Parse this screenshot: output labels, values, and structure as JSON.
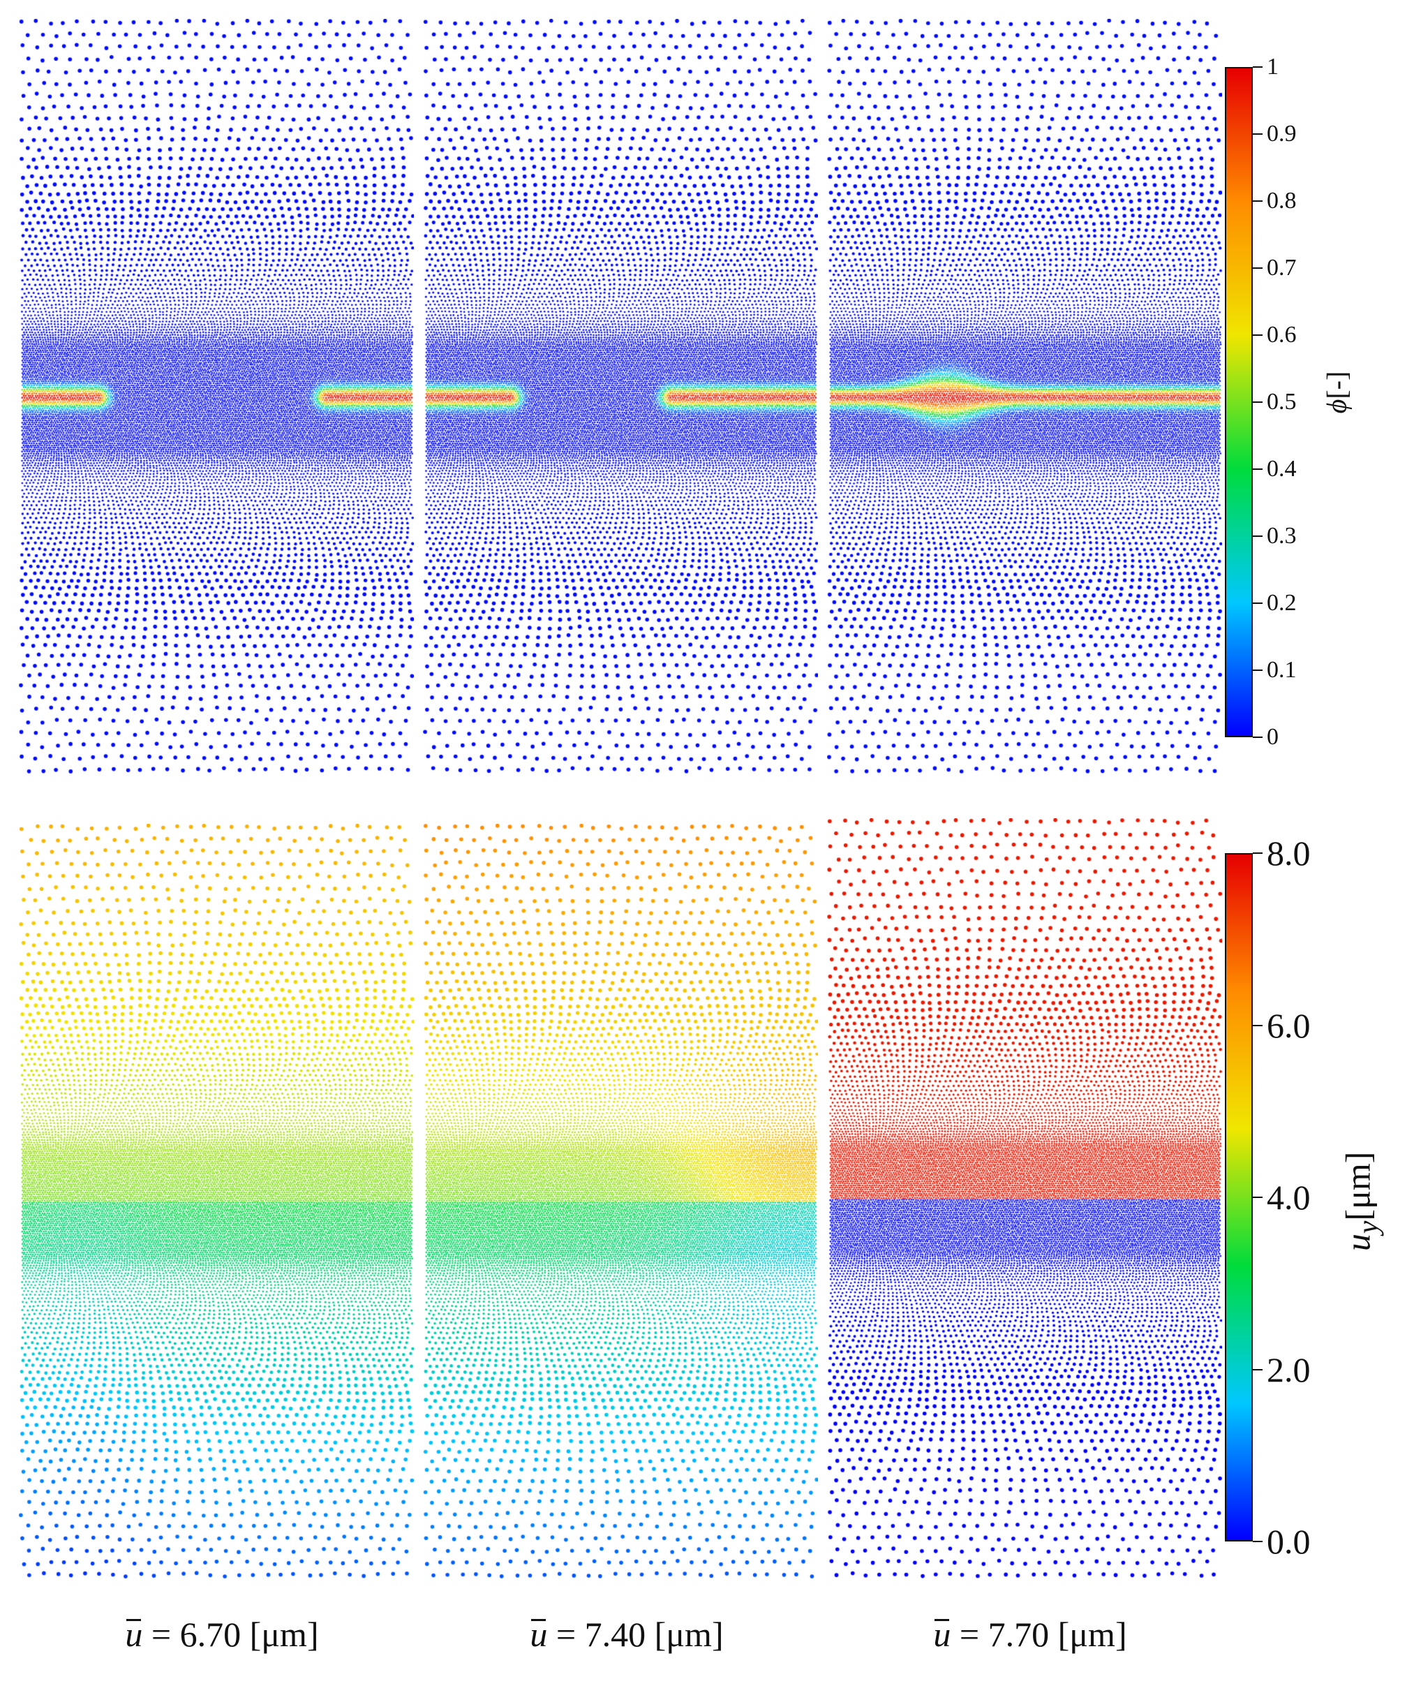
{
  "figure": {
    "panels_top": [
      {
        "field": "phi",
        "gap": true
      },
      {
        "field": "phi",
        "gap": true
      },
      {
        "field": "phi",
        "gap": false
      }
    ],
    "panels_bottom": [
      {
        "field": "uy",
        "state": 6.7
      },
      {
        "field": "uy",
        "state": 7.4
      },
      {
        "field": "uy",
        "state": 7.7
      }
    ],
    "captions": [
      {
        "symbol": "u",
        "text": " = 6.70 [μm]"
      },
      {
        "symbol": "u",
        "text": " = 7.40 [μm]"
      },
      {
        "symbol": "u",
        "text": " = 7.70 [μm]"
      }
    ]
  },
  "colorbar_phi": {
    "symbol": "ϕ",
    "unit": "[-]",
    "range": [
      0,
      1
    ],
    "ticks": [
      "0",
      "0.1",
      "0.2",
      "0.3",
      "0.4",
      "0.5",
      "0.6",
      "0.7",
      "0.8",
      "0.9",
      "1"
    ]
  },
  "colorbar_uy": {
    "symbol": "u",
    "subscript": "y",
    "unit": "[μm]",
    "range": [
      0.0,
      8.0
    ],
    "ticks": [
      "0.0",
      "2.0",
      "4.0",
      "6.0",
      "8.0"
    ]
  },
  "colors": {
    "colormap": [
      "#0000ff",
      "#00c8ff",
      "#00dc3c",
      "#f0e600",
      "#ff8c00",
      "#e60000"
    ],
    "low": "#0000ff",
    "high": "#e60000"
  }
}
